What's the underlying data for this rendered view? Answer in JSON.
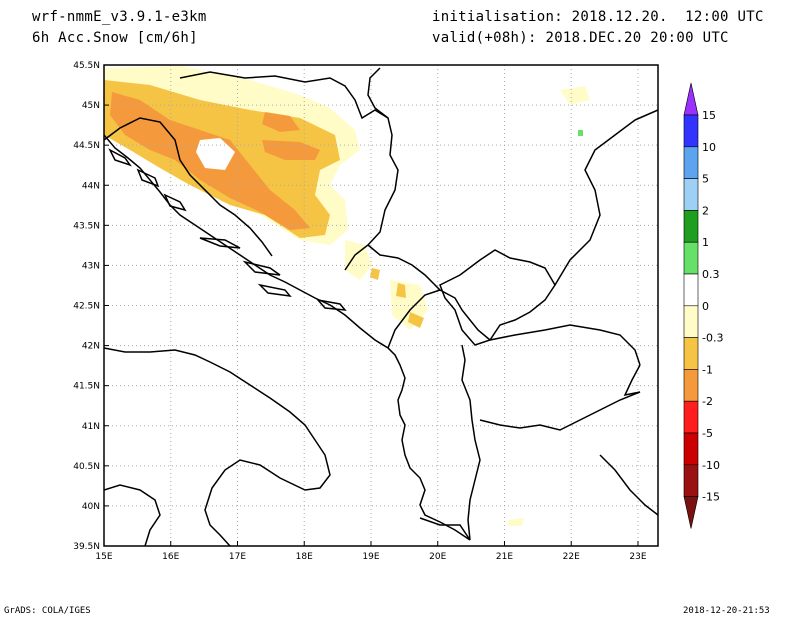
{
  "header": {
    "model": "wrf-nmmE_v3.9.1-e3km",
    "field": "6h Acc.Snow [cm/6h]",
    "initialisation": "initialisation: 2018.12.20.  12:00 UTC",
    "valid": "valid(+08h): 2018.DEC.20 20:00 UTC"
  },
  "footer": {
    "left": "GrADS: COLA/IGES",
    "right": "2018-12-20-21:53"
  },
  "map": {
    "lon_range": [
      15,
      23.3
    ],
    "lat_range": [
      39.5,
      45.5
    ],
    "lon_ticks": [
      "15E",
      "16E",
      "17E",
      "18E",
      "19E",
      "20E",
      "21E",
      "22E",
      "23E"
    ],
    "lat_ticks": [
      "39.5N",
      "40N",
      "40.5N",
      "41N",
      "41.5N",
      "42N",
      "42.5N",
      "43N",
      "43.5N",
      "44N",
      "44.5N",
      "45N",
      "45.5N"
    ],
    "grid": "dotted"
  },
  "colorbar": {
    "labels": [
      "15",
      "10",
      "5",
      "2",
      "1",
      "0.3",
      "0",
      "-0.3",
      "-1",
      "-2",
      "-5",
      "-10",
      "-15"
    ],
    "colors": [
      "#3333ff",
      "#5da4f0",
      "#9ecff5",
      "#1f9e1f",
      "#66e066",
      "#ffffff",
      "#ffffff",
      "#fffcc8",
      "#f5c444",
      "#f59a3c",
      "#ff1e1e",
      "#cc0000",
      "#991111"
    ],
    "top_arrow_color": "#9b30ff",
    "bottom_arrow_color": "#7a1010"
  },
  "legend_colors": {
    "light": "#fffcc8",
    "mid": "#f5c444",
    "heavy": "#f59a3c"
  }
}
